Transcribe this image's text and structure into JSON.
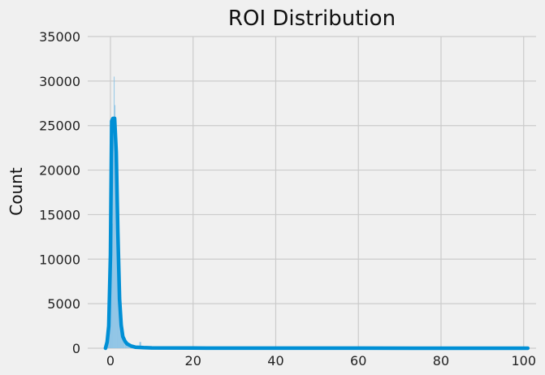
{
  "chart_data": {
    "type": "bar",
    "title": "ROI Distribution",
    "xlabel": "",
    "ylabel": "Count",
    "xlim": [
      -5.5,
      103
    ],
    "ylim": [
      0,
      35000
    ],
    "xticks": [
      0,
      20,
      40,
      60,
      80,
      100
    ],
    "yticks": [
      0,
      5000,
      10000,
      15000,
      20000,
      25000,
      30000,
      35000
    ],
    "grid": true,
    "colors": {
      "background": "#f0f0f0",
      "grid": "#cbcbcb",
      "bar_fill": "#8cc3e6",
      "line": "#008fd5"
    },
    "histogram_bins": {
      "x": [
        -1.0,
        -0.6,
        -0.2,
        0.2,
        0.6,
        0.8,
        1.0,
        1.2,
        1.4,
        1.8,
        2.2,
        2.6,
        3.0,
        3.5,
        4.0,
        5.0,
        6.0,
        7.0,
        8.0,
        10.0,
        15.0,
        20.0,
        30.0,
        50.0,
        80.0,
        100.0
      ],
      "values": [
        300,
        1500,
        5500,
        14000,
        25000,
        30500,
        27300,
        24000,
        19000,
        11000,
        5500,
        2600,
        1300,
        700,
        380,
        200,
        110,
        700,
        60,
        40,
        25,
        15,
        10,
        6,
        4,
        3
      ]
    },
    "kde": {
      "x": [
        -1.2,
        -0.8,
        -0.4,
        0.0,
        0.3,
        0.6,
        1.0,
        1.4,
        1.8,
        2.2,
        2.6,
        3.0,
        3.5,
        4.0,
        5.0,
        6.0,
        8.0,
        10.0,
        20.0,
        40.0,
        60.0,
        80.0,
        101.0
      ],
      "values": [
        0,
        700,
        2500,
        10500,
        25500,
        25800,
        25800,
        22000,
        13000,
        5500,
        2600,
        1300,
        800,
        500,
        250,
        120,
        60,
        40,
        20,
        10,
        5,
        3,
        2
      ]
    }
  }
}
